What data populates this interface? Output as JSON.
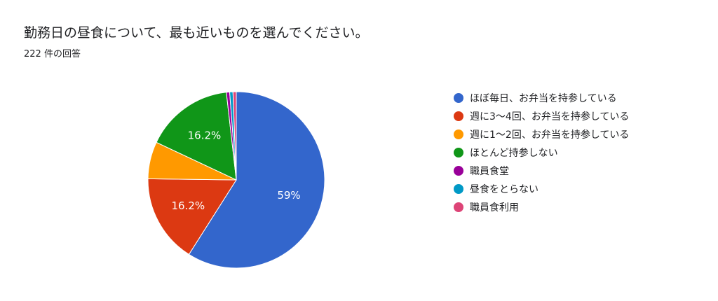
{
  "header": {
    "title": "勤務日の昼食について、最も近いものを選んでください。",
    "response_count": "222 件の回答"
  },
  "chart_data": {
    "type": "pie",
    "title": "勤務日の昼食について、最も近いものを選んでください。",
    "total_responses": 222,
    "slices": [
      {
        "label": "ほぼ毎日、お弁当を持参している",
        "percent": 59.0,
        "display": "59%",
        "color": "#3366cc"
      },
      {
        "label": "週に3〜4回、お弁当を持参している",
        "percent": 16.2,
        "display": "16.2%",
        "color": "#dc3912"
      },
      {
        "label": "週に1〜2回、お弁当を持参している",
        "percent": 6.8,
        "display": "",
        "color": "#ff9900"
      },
      {
        "label": "ほとんど持参しない",
        "percent": 16.2,
        "display": "16.2%",
        "color": "#109618"
      },
      {
        "label": "職員食堂",
        "percent": 0.6,
        "display": "",
        "color": "#990099"
      },
      {
        "label": "昼食をとらない",
        "percent": 0.6,
        "display": "",
        "color": "#0099c6"
      },
      {
        "label": "職員食利用",
        "percent": 0.6,
        "display": "",
        "color": "#dd4477"
      }
    ],
    "legend_position": "right"
  }
}
